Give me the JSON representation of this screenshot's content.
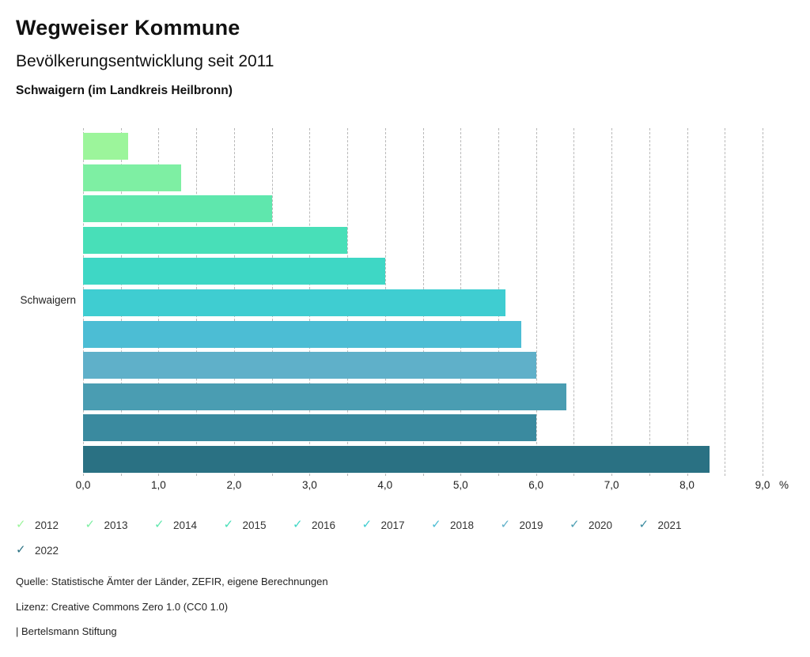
{
  "header": {
    "title": "Wegweiser Kommune",
    "subtitle": "Bevölkerungsentwicklung seit 2011",
    "region": "Schwaigern (im Landkreis Heilbronn)"
  },
  "chart_data": {
    "type": "bar",
    "orientation": "horizontal",
    "title": "Bevölkerungsentwicklung seit 2011",
    "category_axis_label": "Schwaigern",
    "categories": [
      "2012",
      "2013",
      "2014",
      "2015",
      "2016",
      "2017",
      "2018",
      "2019",
      "2020",
      "2021",
      "2022"
    ],
    "values": [
      0.6,
      1.3,
      2.5,
      3.5,
      4.0,
      5.6,
      5.8,
      6.0,
      6.4,
      6.0,
      8.3
    ],
    "colors": [
      "#9CF59B",
      "#7EEFA3",
      "#5FE7AD",
      "#48DFB8",
      "#3ED7C5",
      "#3FCDD1",
      "#4CBDD4",
      "#5FB0C9",
      "#4A9DB2",
      "#3A8A9F",
      "#2A7183"
    ],
    "xlim": [
      0,
      9
    ],
    "grid_step": 0.5,
    "x_tick_step": 1.0,
    "x_tick_labels": [
      "0,0",
      "1,0",
      "2,0",
      "3,0",
      "4,0",
      "5,0",
      "6,0",
      "7,0",
      "8,0",
      "9,0"
    ],
    "x_unit": "%",
    "grid": true,
    "legend_position": "bottom",
    "legend_check_icon": "✓"
  },
  "footer": {
    "source": "Quelle: Statistische Ämter der Länder, ZEFIR, eigene Berechnungen",
    "license": "Lizenz: Creative Commons Zero 1.0 (CC0 1.0)",
    "attribution": "| Bertelsmann Stiftung"
  }
}
